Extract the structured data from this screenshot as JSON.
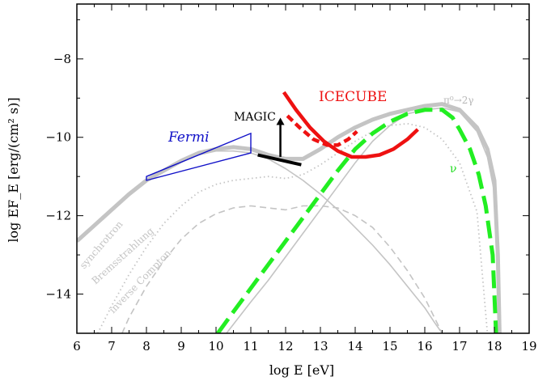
{
  "chart_data": {
    "type": "line",
    "title": "",
    "xlabel": "log E [eV]",
    "ylabel": "log EF_E [erg/(cm² s)]",
    "xlim": [
      6,
      19
    ],
    "ylim": [
      -15,
      -6.6
    ],
    "x_ticks": [
      "6",
      "7",
      "8",
      "9",
      "10",
      "11",
      "12",
      "13",
      "14",
      "15",
      "16",
      "17",
      "18",
      "19"
    ],
    "y_ticks": [
      "-8",
      "-10",
      "-12",
      "-14"
    ],
    "grid": false,
    "labels": {
      "fermi": "Fermi",
      "magic": "MAGIC",
      "icecube": "ICECUBE",
      "pion": "π⁰→2γ",
      "nu": "ν",
      "synchrotron": "synchrotron",
      "bremsstrahlung": "Bremsstrahlung",
      "inverse_compton": "inverse Compton"
    },
    "colors": {
      "total": "#c4c4c4",
      "component": "#c4c4c4",
      "fermi": "#1010c8",
      "icecube": "#ee1111",
      "nu": "#22ee22",
      "magic": "#000000"
    },
    "series": [
      {
        "key": "total",
        "style": "solid-thick",
        "x": [
          6.0,
          6.5,
          7.0,
          7.5,
          8.0,
          8.5,
          9.0,
          9.5,
          10.0,
          10.5,
          11.0,
          11.5,
          12.0,
          12.5,
          13.0,
          13.5,
          14.0,
          14.5,
          15.0,
          15.5,
          16.0,
          16.5,
          17.0,
          17.5,
          17.8,
          18.0,
          18.1,
          18.15
        ],
        "y": [
          -12.65,
          -12.25,
          -11.85,
          -11.45,
          -11.1,
          -10.85,
          -10.6,
          -10.4,
          -10.3,
          -10.25,
          -10.3,
          -10.45,
          -10.55,
          -10.55,
          -10.3,
          -10.0,
          -9.75,
          -9.55,
          -9.4,
          -9.3,
          -9.2,
          -9.15,
          -9.3,
          -9.75,
          -10.3,
          -11.1,
          -13.0,
          -15.0
        ]
      },
      {
        "key": "synchrotron",
        "style": "solid-thin",
        "x": [
          6.0,
          6.5,
          7.0,
          7.5,
          8.0,
          8.5,
          9.0,
          9.5,
          10.0,
          10.5,
          11.0,
          11.5,
          12.0,
          12.5,
          13.0,
          13.5,
          14.0,
          14.5,
          15.0,
          15.5,
          16.0,
          16.3,
          16.5
        ],
        "y": [
          -12.65,
          -12.25,
          -11.85,
          -11.45,
          -11.1,
          -10.85,
          -10.6,
          -10.45,
          -10.35,
          -10.35,
          -10.4,
          -10.55,
          -10.8,
          -11.1,
          -11.45,
          -11.85,
          -12.3,
          -12.75,
          -13.25,
          -13.8,
          -14.35,
          -14.75,
          -15.0
        ]
      },
      {
        "key": "bremsstrahlung",
        "style": "dotted",
        "x": [
          6.6,
          7.0,
          7.5,
          8.0,
          8.5,
          9.0,
          9.5,
          10.0,
          10.5,
          11.0,
          11.5,
          12.0,
          12.5,
          13.0,
          13.5,
          14.0,
          14.5,
          15.0,
          15.5,
          16.0,
          16.5,
          17.0,
          17.5,
          17.8
        ],
        "y": [
          -15.0,
          -14.3,
          -13.5,
          -12.8,
          -12.2,
          -11.75,
          -11.4,
          -11.2,
          -11.1,
          -11.05,
          -11.0,
          -11.05,
          -10.95,
          -10.7,
          -10.4,
          -10.1,
          -9.85,
          -9.7,
          -9.65,
          -9.75,
          -10.05,
          -10.65,
          -11.9,
          -15.0
        ]
      },
      {
        "key": "inverse_compton",
        "style": "dashed",
        "x": [
          7.3,
          7.5,
          8.0,
          8.5,
          9.0,
          9.5,
          10.0,
          10.5,
          11.0,
          11.5,
          12.0,
          12.5,
          13.0,
          13.5,
          14.0,
          14.5,
          15.0,
          15.5,
          16.0,
          16.5
        ],
        "y": [
          -15.0,
          -14.6,
          -13.8,
          -13.15,
          -12.6,
          -12.2,
          -11.95,
          -11.8,
          -11.75,
          -11.8,
          -11.85,
          -11.75,
          -11.75,
          -11.8,
          -12.0,
          -12.3,
          -12.8,
          -13.4,
          -14.1,
          -15.0
        ]
      },
      {
        "key": "pion",
        "style": "solid-thin",
        "x": [
          10.3,
          11.0,
          11.5,
          12.0,
          12.5,
          13.0,
          13.5,
          14.0,
          14.5,
          15.0,
          15.5,
          16.0,
          16.5,
          17.0,
          17.5,
          17.8,
          18.0,
          18.1,
          18.15
        ],
        "y": [
          -15.0,
          -14.2,
          -13.65,
          -13.05,
          -12.45,
          -11.85,
          -11.25,
          -10.65,
          -10.1,
          -9.7,
          -9.4,
          -9.3,
          -9.25,
          -9.35,
          -9.85,
          -10.5,
          -11.4,
          -13.2,
          -15.0
        ]
      },
      {
        "key": "nu",
        "style": "dashed-thick",
        "x": [
          10.05,
          10.5,
          11.0,
          11.5,
          12.0,
          12.5,
          13.0,
          13.5,
          14.0,
          14.5,
          15.0,
          15.5,
          16.0,
          16.3,
          16.5,
          16.8,
          17.0,
          17.3,
          17.55,
          17.75,
          17.95,
          18.05
        ],
        "y": [
          -15.0,
          -14.45,
          -13.85,
          -13.25,
          -12.65,
          -12.05,
          -11.45,
          -10.85,
          -10.3,
          -9.9,
          -9.6,
          -9.4,
          -9.3,
          -9.3,
          -9.3,
          -9.5,
          -9.8,
          -10.3,
          -10.95,
          -11.75,
          -13.0,
          -15.0
        ]
      },
      {
        "key": "icecube_a",
        "style": "solid-red",
        "x": [
          11.95,
          12.3,
          12.7,
          13.1,
          13.5,
          13.9,
          14.3,
          14.7,
          15.1,
          15.5,
          15.8
        ],
        "y": [
          -8.85,
          -9.3,
          -9.75,
          -10.1,
          -10.35,
          -10.5,
          -10.5,
          -10.45,
          -10.3,
          -10.05,
          -9.8
        ]
      },
      {
        "key": "icecube_b",
        "style": "dashed-red",
        "x": [
          12.05,
          12.4,
          12.8,
          13.2,
          13.5,
          13.8,
          14.05
        ],
        "y": [
          -9.45,
          -9.75,
          -10.05,
          -10.2,
          -10.2,
          -10.05,
          -9.85
        ]
      }
    ],
    "fermi_bowtie": {
      "x": [
        8.0,
        11.0,
        11.0,
        8.0
      ],
      "y": [
        -11.0,
        -9.9,
        -10.4,
        -11.1
      ]
    },
    "magic_bar": {
      "x": [
        11.2,
        12.45
      ],
      "y": [
        -10.45,
        -10.7
      ]
    },
    "magic_arrow": {
      "x": 11.85,
      "y_from": -10.5,
      "y_to": -9.5
    }
  }
}
